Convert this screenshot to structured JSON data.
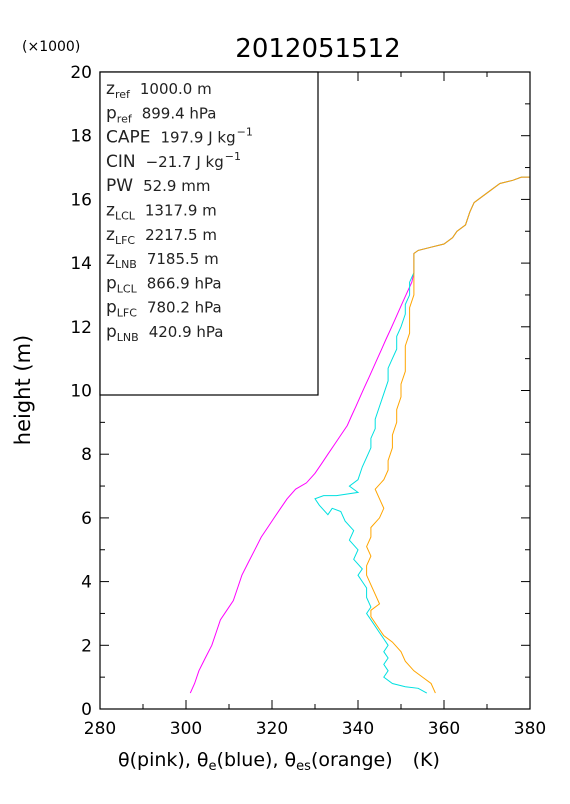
{
  "chart_data": {
    "type": "line",
    "title": "2012051512",
    "xlabel": "θ(pink), θe(blue), θes(orange)   (K)",
    "xlabel_parts": {
      "theta_pink": "θ(pink), ",
      "theta_e_sym": "θ",
      "theta_e_sub": "e",
      "theta_e_rest": "(blue), ",
      "theta_es_sym": "θ",
      "theta_es_sub": "es",
      "theta_es_rest": "(orange)",
      "unit": "(K)"
    },
    "ylabel": "height (m)",
    "y_multiplier": "(×1000)",
    "xlim": [
      280,
      380
    ],
    "ylim": [
      0,
      20
    ],
    "x_ticks": [
      "280",
      "300",
      "320",
      "340",
      "360",
      "380"
    ],
    "y_ticks": [
      "0",
      "2",
      "4",
      "6",
      "8",
      "10",
      "12",
      "14",
      "16",
      "18",
      "20"
    ],
    "grid": false,
    "info_box": [
      {
        "sym": "z",
        "sub": "ref",
        "sup": "",
        "value": "1000.0 m",
        "sup_unit": ""
      },
      {
        "sym": "p",
        "sub": "ref",
        "sup": "",
        "value": "899.4 hPa",
        "sup_unit": ""
      },
      {
        "sym": "CAPE",
        "sub": "",
        "sup": "",
        "value": "197.9 J kg",
        "sup_unit": "−1"
      },
      {
        "sym": "CIN",
        "sub": "",
        "sup": "",
        "value": "−21.7 J kg",
        "sup_unit": "−1"
      },
      {
        "sym": "PW",
        "sub": "",
        "sup": "",
        "value": "52.9 mm",
        "sup_unit": ""
      },
      {
        "sym": "z",
        "sub": "LCL",
        "sup": "",
        "value": "1317.9 m",
        "sup_unit": ""
      },
      {
        "sym": "z",
        "sub": "LFC",
        "sup": "",
        "value": "2217.5 m",
        "sup_unit": ""
      },
      {
        "sym": "z",
        "sub": "LNB",
        "sup": "",
        "value": "7185.5 m",
        "sup_unit": ""
      },
      {
        "sym": "p",
        "sub": "LCL",
        "sup": "",
        "value": "866.9 hPa",
        "sup_unit": ""
      },
      {
        "sym": "p",
        "sub": "LFC",
        "sup": "",
        "value": "780.2 hPa",
        "sup_unit": ""
      },
      {
        "sym": "p",
        "sub": "LNB",
        "sup": "",
        "value": "420.9 hPa",
        "sup_unit": ""
      }
    ],
    "series": [
      {
        "color": "#ff00ff",
        "points": [
          [
            301,
            0.5
          ],
          [
            302,
            0.8
          ],
          [
            303,
            1.2
          ],
          [
            304.5,
            1.6
          ],
          [
            306,
            2.0
          ],
          [
            307,
            2.4
          ],
          [
            308,
            2.8
          ],
          [
            309.5,
            3.1
          ],
          [
            311,
            3.4
          ],
          [
            312,
            3.8
          ],
          [
            313,
            4.2
          ],
          [
            314.5,
            4.6
          ],
          [
            316,
            5.0
          ],
          [
            317.5,
            5.4
          ],
          [
            319,
            5.7
          ],
          [
            320.5,
            6.0
          ],
          [
            322,
            6.3
          ],
          [
            323.5,
            6.6
          ],
          [
            325.5,
            6.9
          ],
          [
            328,
            7.1
          ],
          [
            330,
            7.4
          ],
          [
            331.5,
            7.7
          ],
          [
            333,
            8.0
          ],
          [
            334.5,
            8.3
          ],
          [
            336,
            8.6
          ],
          [
            337.5,
            8.9
          ],
          [
            338.5,
            9.2
          ],
          [
            339.5,
            9.5
          ],
          [
            340.5,
            9.8
          ],
          [
            341.5,
            10.1
          ],
          [
            342.5,
            10.4
          ],
          [
            343.5,
            10.7
          ],
          [
            344.5,
            11.0
          ],
          [
            345.5,
            11.3
          ],
          [
            346.5,
            11.6
          ],
          [
            347.5,
            11.9
          ],
          [
            348.5,
            12.2
          ],
          [
            349.5,
            12.5
          ],
          [
            350.5,
            12.8
          ],
          [
            351.5,
            13.1
          ],
          [
            352.5,
            13.4
          ],
          [
            353,
            13.7
          ],
          [
            353,
            14.0
          ],
          [
            353,
            14.3
          ],
          [
            354,
            14.4
          ],
          [
            357,
            14.5
          ],
          [
            360,
            14.6
          ],
          [
            362,
            14.8
          ],
          [
            363,
            15.0
          ],
          [
            365,
            15.2
          ],
          [
            366,
            15.6
          ],
          [
            367,
            15.9
          ],
          [
            369,
            16.1
          ],
          [
            371,
            16.3
          ],
          [
            373,
            16.5
          ],
          [
            376,
            16.6
          ],
          [
            378,
            16.7
          ],
          [
            380,
            16.7
          ]
        ]
      },
      {
        "color": "#00e0e0",
        "points": [
          [
            356,
            0.5
          ],
          [
            354,
            0.65
          ],
          [
            351,
            0.7
          ],
          [
            348,
            0.8
          ],
          [
            346,
            1.0
          ],
          [
            347,
            1.2
          ],
          [
            346,
            1.4
          ],
          [
            347,
            1.6
          ],
          [
            346,
            1.8
          ],
          [
            347,
            2.0
          ],
          [
            346,
            2.2
          ],
          [
            345,
            2.4
          ],
          [
            344,
            2.6
          ],
          [
            343,
            2.8
          ],
          [
            342,
            3.0
          ],
          [
            343,
            3.2
          ],
          [
            342,
            3.5
          ],
          [
            342,
            3.8
          ],
          [
            341,
            4.0
          ],
          [
            340,
            4.2
          ],
          [
            341,
            4.4
          ],
          [
            339,
            4.7
          ],
          [
            340,
            5.0
          ],
          [
            338,
            5.3
          ],
          [
            339,
            5.6
          ],
          [
            337,
            5.9
          ],
          [
            336,
            6.2
          ],
          [
            334,
            6.3
          ],
          [
            333,
            6.1
          ],
          [
            331,
            6.4
          ],
          [
            330,
            6.6
          ],
          [
            332,
            6.7
          ],
          [
            335,
            6.7
          ],
          [
            340,
            6.8
          ],
          [
            338,
            7.0
          ],
          [
            340,
            7.2
          ],
          [
            341,
            7.6
          ],
          [
            342,
            7.9
          ],
          [
            343,
            8.2
          ],
          [
            343,
            8.5
          ],
          [
            344,
            8.8
          ],
          [
            344,
            9.1
          ],
          [
            345,
            9.5
          ],
          [
            346,
            9.9
          ],
          [
            347,
            10.3
          ],
          [
            347,
            10.7
          ],
          [
            348,
            11.0
          ],
          [
            349,
            11.3
          ],
          [
            349,
            11.7
          ],
          [
            350,
            12.0
          ],
          [
            351,
            12.4
          ],
          [
            351,
            12.7
          ],
          [
            352,
            13.0
          ],
          [
            352,
            13.4
          ],
          [
            353,
            13.7
          ],
          [
            353,
            14.0
          ],
          [
            353,
            14.3
          ],
          [
            354,
            14.4
          ],
          [
            357,
            14.5
          ],
          [
            360,
            14.6
          ],
          [
            362,
            14.8
          ],
          [
            363,
            15.0
          ],
          [
            365,
            15.2
          ],
          [
            366,
            15.6
          ],
          [
            367,
            15.9
          ],
          [
            369,
            16.1
          ],
          [
            371,
            16.3
          ],
          [
            373,
            16.5
          ],
          [
            376,
            16.6
          ],
          [
            378,
            16.7
          ],
          [
            380,
            16.7
          ]
        ]
      },
      {
        "color": "#ffa500",
        "points": [
          [
            358,
            0.5
          ],
          [
            357,
            0.8
          ],
          [
            355,
            1.0
          ],
          [
            353,
            1.2
          ],
          [
            351,
            1.5
          ],
          [
            350,
            1.8
          ],
          [
            348,
            2.1
          ],
          [
            346,
            2.3
          ],
          [
            345,
            2.5
          ],
          [
            344,
            2.7
          ],
          [
            343,
            2.9
          ],
          [
            343,
            3.1
          ],
          [
            345,
            3.3
          ],
          [
            344,
            3.6
          ],
          [
            343,
            3.9
          ],
          [
            342,
            4.2
          ],
          [
            342,
            4.5
          ],
          [
            343,
            4.8
          ],
          [
            342,
            5.1
          ],
          [
            343,
            5.4
          ],
          [
            343,
            5.7
          ],
          [
            345,
            6.0
          ],
          [
            346,
            6.3
          ],
          [
            345,
            6.6
          ],
          [
            344,
            6.9
          ],
          [
            346,
            7.2
          ],
          [
            347,
            7.5
          ],
          [
            347,
            7.8
          ],
          [
            348,
            8.2
          ],
          [
            348,
            8.6
          ],
          [
            349,
            9.0
          ],
          [
            349,
            9.4
          ],
          [
            350,
            9.8
          ],
          [
            350,
            10.2
          ],
          [
            351,
            10.6
          ],
          [
            351,
            11.0
          ],
          [
            351,
            11.4
          ],
          [
            352,
            11.8
          ],
          [
            352,
            12.2
          ],
          [
            352,
            12.6
          ],
          [
            353,
            13.0
          ],
          [
            353,
            13.4
          ],
          [
            353,
            13.7
          ],
          [
            353,
            14.0
          ],
          [
            353,
            14.3
          ],
          [
            354,
            14.4
          ],
          [
            357,
            14.5
          ],
          [
            360,
            14.6
          ],
          [
            362,
            14.8
          ],
          [
            363,
            15.0
          ],
          [
            365,
            15.2
          ],
          [
            366,
            15.6
          ],
          [
            367,
            15.9
          ],
          [
            369,
            16.1
          ],
          [
            371,
            16.3
          ],
          [
            373,
            16.5
          ],
          [
            376,
            16.6
          ],
          [
            378,
            16.7
          ],
          [
            380,
            16.7
          ]
        ]
      }
    ]
  }
}
